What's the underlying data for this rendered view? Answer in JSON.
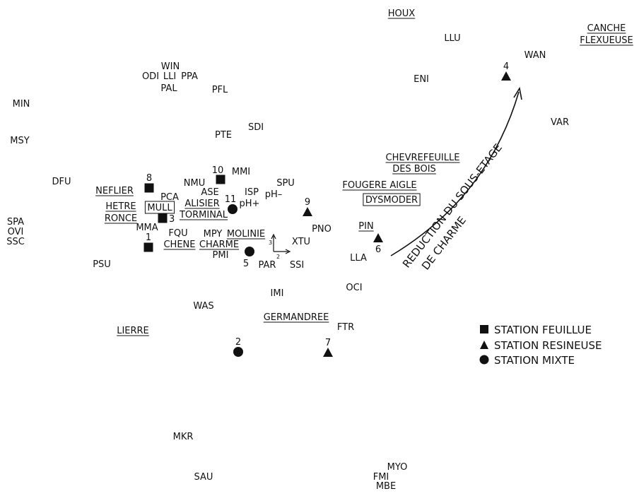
{
  "chart_data": {
    "type": "scatter",
    "title": "",
    "xlabel": "",
    "ylabel": "",
    "x_range": [
      0,
      904
    ],
    "y_range": [
      0,
      702
    ],
    "grid": false,
    "axes_indicator": {
      "axis_labels": [
        "3",
        "2"
      ],
      "x": 387,
      "y": 356
    },
    "species": [
      {
        "label": "HOUX",
        "x": 568,
        "y": 18,
        "underline": true
      },
      {
        "label": "CANCHE",
        "x": 858,
        "y": 39,
        "underline": true
      },
      {
        "label": "FLEXUEUSE",
        "x": 858,
        "y": 56,
        "underline": true
      },
      {
        "label": "LLU",
        "x": 640,
        "y": 53
      },
      {
        "label": "WAN",
        "x": 757,
        "y": 77
      },
      {
        "label": "WIN",
        "x": 241,
        "y": 93
      },
      {
        "label": "ODI",
        "x": 213,
        "y": 107
      },
      {
        "label": "LLI",
        "x": 240,
        "y": 107
      },
      {
        "label": "PPA",
        "x": 268,
        "y": 107
      },
      {
        "label": "PAL",
        "x": 239,
        "y": 124
      },
      {
        "label": "PFL",
        "x": 311,
        "y": 126
      },
      {
        "label": "ENI",
        "x": 596,
        "y": 111
      },
      {
        "label": "MIN",
        "x": 30,
        "y": 146
      },
      {
        "label": "VAR",
        "x": 792,
        "y": 172
      },
      {
        "label": "SDI",
        "x": 362,
        "y": 179
      },
      {
        "label": "PTE",
        "x": 316,
        "y": 190
      },
      {
        "label": "MSY",
        "x": 28,
        "y": 198
      },
      {
        "label": "CHEVREFEUILLE",
        "x": 598,
        "y": 222,
        "underline": true
      },
      {
        "label": "DES BOIS",
        "x": 586,
        "y": 238,
        "underline": true
      },
      {
        "label": "MMI",
        "x": 341,
        "y": 242
      },
      {
        "label": "NMU",
        "x": 275,
        "y": 258
      },
      {
        "label": "SPU",
        "x": 404,
        "y": 258
      },
      {
        "label": "DFU",
        "x": 87,
        "y": 256
      },
      {
        "label": "FOUGERE AIGLE",
        "x": 537,
        "y": 261,
        "underline": true
      },
      {
        "label": "ASE",
        "x": 297,
        "y": 271
      },
      {
        "label": "ISP",
        "x": 356,
        "y": 271
      },
      {
        "label": "pH–",
        "x": 387,
        "y": 274
      },
      {
        "label": "NEFLIER",
        "x": 162,
        "y": 269,
        "underline": true
      },
      {
        "label": "PCA",
        "x": 240,
        "y": 278
      },
      {
        "label": "DYSMODER",
        "x": 554,
        "y": 282,
        "boxed": true
      },
      {
        "label": "ALISIER",
        "x": 286,
        "y": 287,
        "underline": true
      },
      {
        "label": "pH+",
        "x": 353,
        "y": 287
      },
      {
        "label": "HETRE",
        "x": 171,
        "y": 291,
        "underline": true
      },
      {
        "label": "MULL",
        "x": 226,
        "y": 293,
        "boxed": true
      },
      {
        "label": "TORMINAL",
        "x": 288,
        "y": 303,
        "underline": true
      },
      {
        "label": "RONCE",
        "x": 171,
        "y": 308,
        "underline": true
      },
      {
        "label": "SPA",
        "x": 22,
        "y": 313
      },
      {
        "label": "OVI",
        "x": 22,
        "y": 327
      },
      {
        "label": "SSC",
        "x": 22,
        "y": 341
      },
      {
        "label": "MMA",
        "x": 208,
        "y": 321
      },
      {
        "label": "PIN",
        "x": 518,
        "y": 319,
        "underline": true
      },
      {
        "label": "PNO",
        "x": 455,
        "y": 323
      },
      {
        "label": "FQU",
        "x": 252,
        "y": 329
      },
      {
        "label": "MPY",
        "x": 301,
        "y": 330
      },
      {
        "label": "MOLINIE",
        "x": 348,
        "y": 330,
        "underline": true
      },
      {
        "label": "CHENE",
        "x": 254,
        "y": 345,
        "underline": true
      },
      {
        "label": "CHARME",
        "x": 310,
        "y": 345,
        "underline": true
      },
      {
        "label": "XTU",
        "x": 426,
        "y": 341
      },
      {
        "label": "PMI",
        "x": 312,
        "y": 360
      },
      {
        "label": "LLA",
        "x": 507,
        "y": 364
      },
      {
        "label": "PAR",
        "x": 378,
        "y": 374
      },
      {
        "label": "SSI",
        "x": 420,
        "y": 374
      },
      {
        "label": "PSU",
        "x": 144,
        "y": 373
      },
      {
        "label": "OCI",
        "x": 501,
        "y": 406
      },
      {
        "label": "IMI",
        "x": 392,
        "y": 414
      },
      {
        "label": "WAS",
        "x": 288,
        "y": 432
      },
      {
        "label": "GERMANDREE",
        "x": 419,
        "y": 448,
        "underline": true
      },
      {
        "label": "FTR",
        "x": 489,
        "y": 462
      },
      {
        "label": "LIERRE",
        "x": 188,
        "y": 467,
        "underline": true
      },
      {
        "label": "MKR",
        "x": 259,
        "y": 617
      },
      {
        "label": "MYO",
        "x": 562,
        "y": 660
      },
      {
        "label": "FMI",
        "x": 539,
        "y": 674
      },
      {
        "label": "SAU",
        "x": 288,
        "y": 674
      },
      {
        "label": "MBE",
        "x": 546,
        "y": 687
      }
    ],
    "stations": [
      {
        "label": "1",
        "x": 210,
        "y": 350,
        "type": "feuillue"
      },
      {
        "label": "2",
        "x": 337,
        "y": 498,
        "type": "mixte"
      },
      {
        "label": "3",
        "x": 230,
        "y": 309,
        "type": "feuillue"
      },
      {
        "label": "4",
        "x": 716,
        "y": 108,
        "type": "resineuse"
      },
      {
        "label": "5",
        "x": 353,
        "y": 356,
        "type": "mixte"
      },
      {
        "label": "6",
        "x": 535,
        "y": 337,
        "type": "resineuse"
      },
      {
        "label": "7",
        "x": 464,
        "y": 499,
        "type": "resineuse"
      },
      {
        "label": "8",
        "x": 211,
        "y": 266,
        "type": "feuillue"
      },
      {
        "label": "9",
        "x": 435,
        "y": 300,
        "type": "resineuse"
      },
      {
        "label": "10",
        "x": 312,
        "y": 254,
        "type": "feuillue"
      },
      {
        "label": "11",
        "x": 329,
        "y": 296,
        "type": "mixte"
      }
    ],
    "arrow_annotation": "REDUCTION DU SOUS-ETAGE DE CHARME",
    "arrow_text_lines": [
      "REDUCTION DU SOUS-ETAGE",
      "DE CHARME"
    ],
    "legend": {
      "placement": "lower-right",
      "entries": [
        {
          "label": "STATION FEUILLUE",
          "marker": "square"
        },
        {
          "label": "STATION RESINEUSE",
          "marker": "triangle"
        },
        {
          "label": "STATION MIXTE",
          "marker": "circle"
        }
      ]
    },
    "colors": {
      "ink": "#111111",
      "background": "#ffffff"
    }
  }
}
